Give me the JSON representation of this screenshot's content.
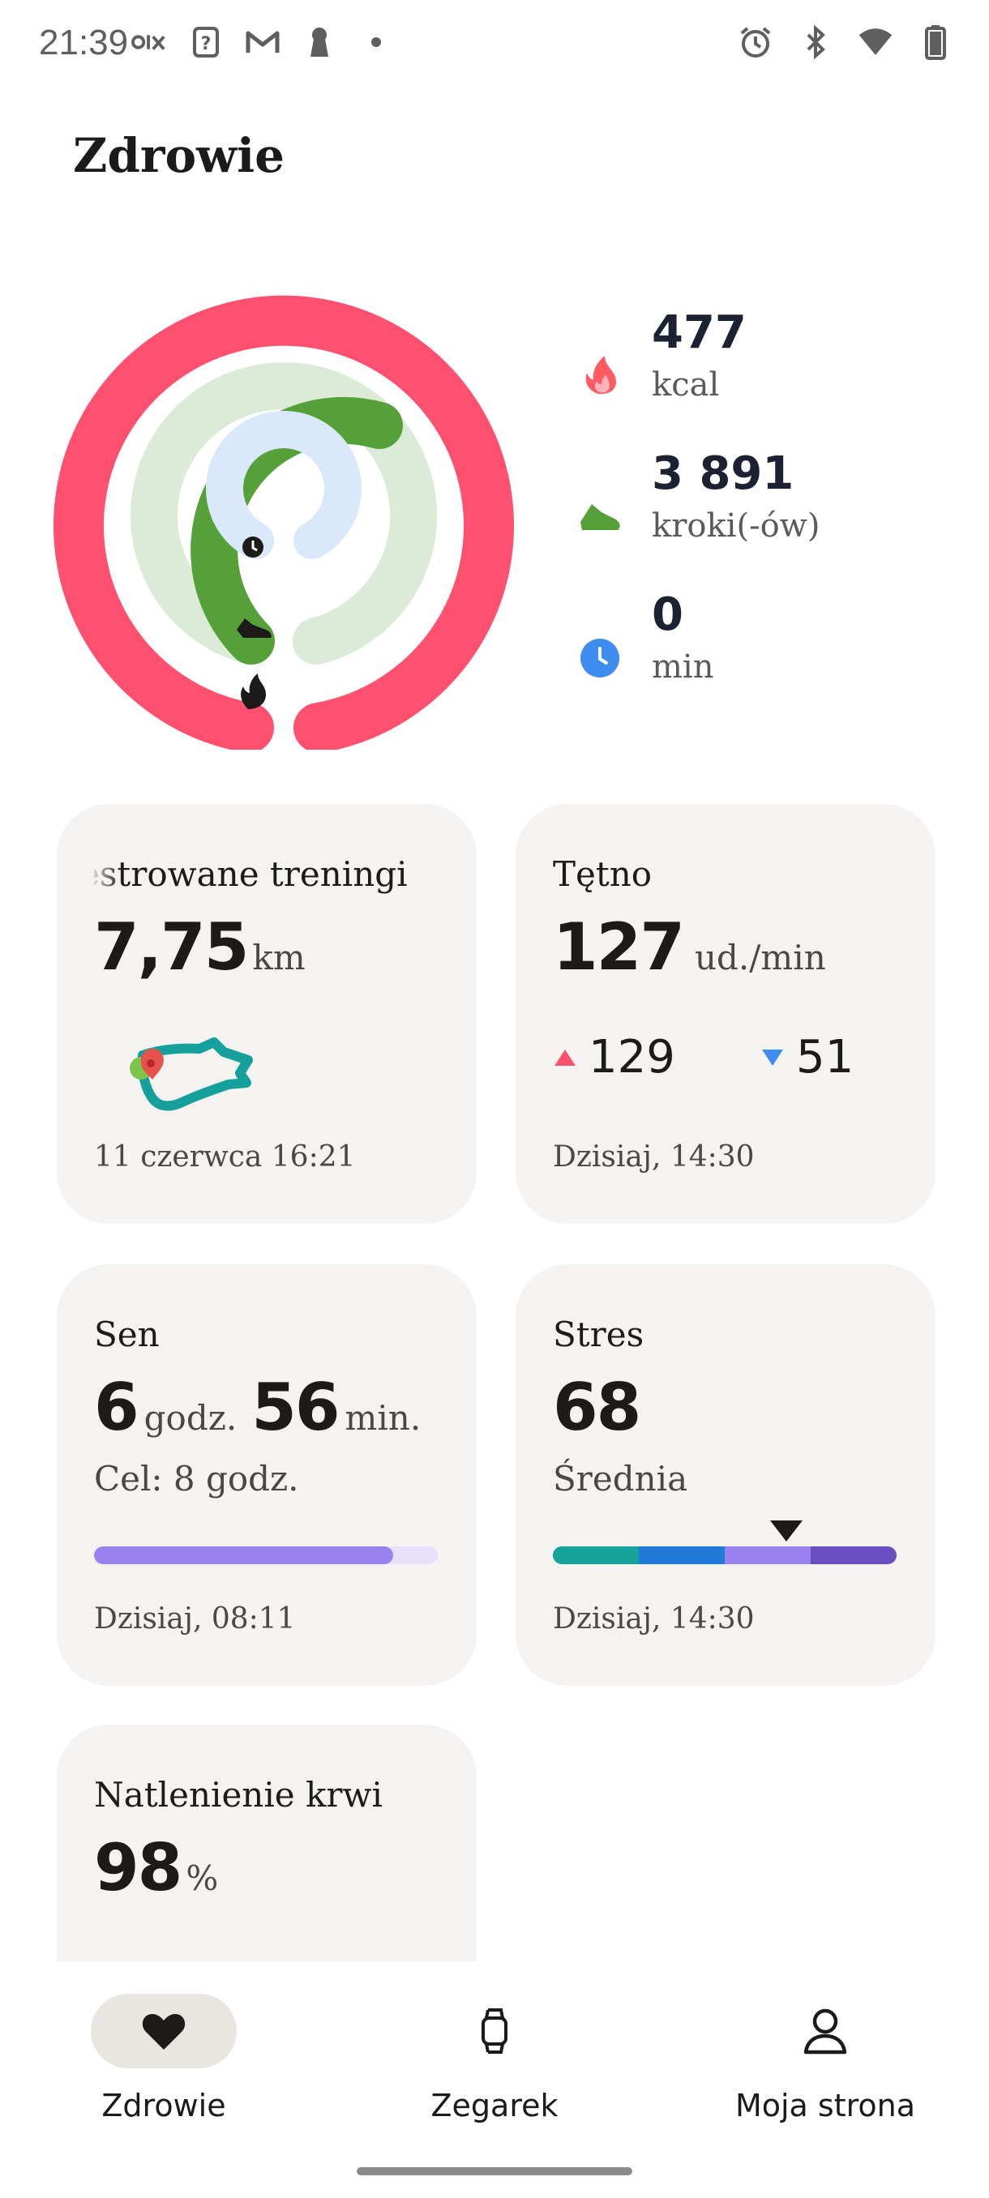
{
  "status_bar": {
    "time": "21:39",
    "left_icons": [
      "olx-icon",
      "question-icon",
      "gmail-icon",
      "keyhole-icon",
      "dot-icon"
    ],
    "right_icons": [
      "alarm-icon",
      "bluetooth-icon",
      "wifi-icon",
      "battery-icon"
    ]
  },
  "header": {
    "title": "Zdrowie"
  },
  "activity": {
    "calories": {
      "value": "477",
      "unit": "kcal",
      "color": "#ff5070"
    },
    "steps": {
      "value": "3 891",
      "unit": "kroki(-ów)",
      "color": "#56a03a"
    },
    "minutes": {
      "value": "0",
      "unit": "min",
      "color": "#3f8cf0"
    }
  },
  "cards": {
    "workouts": {
      "title": "estrowane treningi",
      "value": "7,75",
      "unit": "km",
      "footer": "11 czerwca 16:21"
    },
    "heart": {
      "title": "Tętno",
      "value": "127",
      "unit": "ud./min",
      "max": "129",
      "min": "51",
      "footer": "Dzisiaj, 14:30"
    },
    "sleep": {
      "title": "Sen",
      "hours": "6",
      "hours_unit": "godz.",
      "minutes": "56",
      "minutes_unit": "min.",
      "goal": "Cel: 8 godz.",
      "progress": 0.87,
      "footer": "Dzisiaj, 08:11"
    },
    "stress": {
      "title": "Stres",
      "value": "68",
      "label": "Średnia",
      "level": 0.68,
      "footer": "Dzisiaj, 14:30",
      "colors": [
        "#16a39a",
        "#1f7ad8",
        "#9a82ee",
        "#6a4fc1"
      ]
    },
    "oxygen": {
      "title": "Natlenienie krwi",
      "value": "98",
      "unit": "%"
    }
  },
  "nav": {
    "items": [
      {
        "label": "Zdrowie",
        "icon": "heart-icon",
        "active": true
      },
      {
        "label": "Zegarek",
        "icon": "watch-icon",
        "active": false
      },
      {
        "label": "Moja strona",
        "icon": "person-icon",
        "active": false
      }
    ]
  }
}
